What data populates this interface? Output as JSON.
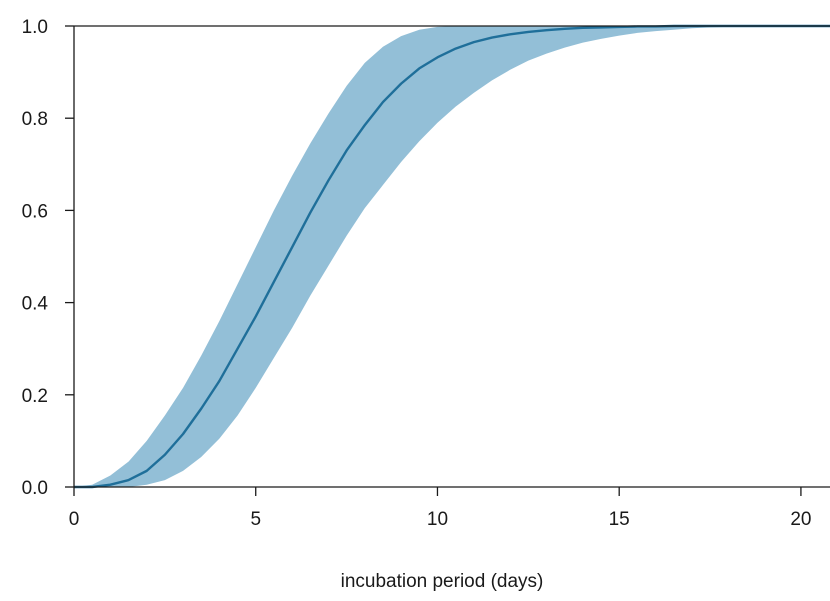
{
  "chart_data": {
    "type": "area",
    "title": "",
    "xlabel": "incubation period (days)",
    "ylabel": "",
    "xlim": [
      0,
      20.8
    ],
    "ylim": [
      0,
      1.0
    ],
    "x_ticks": [
      0,
      5,
      10,
      15,
      20
    ],
    "y_ticks": [
      0.0,
      0.2,
      0.4,
      0.6,
      0.8,
      1.0
    ],
    "x_tick_labels": [
      "0",
      "5",
      "10",
      "15",
      "20"
    ],
    "y_tick_labels": [
      "0.0",
      "0.2",
      "0.4",
      "0.6",
      "0.8",
      "1.0"
    ],
    "grid": false,
    "colors": {
      "line": "#1f6f9a",
      "band": "#93bfd7"
    },
    "x": [
      0,
      0.5,
      1,
      1.5,
      2,
      2.5,
      3,
      3.5,
      4,
      4.5,
      5,
      5.5,
      6,
      6.5,
      7,
      7.5,
      8,
      8.5,
      9,
      9.5,
      10,
      10.5,
      11,
      11.5,
      12,
      12.5,
      13,
      13.5,
      14,
      14.5,
      15,
      15.5,
      16,
      16.5,
      17,
      17.5,
      18,
      18.5,
      19,
      19.5,
      20,
      20.8
    ],
    "series": [
      {
        "role": "median",
        "values": [
          0,
          0,
          0.005,
          0.015,
          0.035,
          0.07,
          0.115,
          0.17,
          0.23,
          0.3,
          0.37,
          0.445,
          0.52,
          0.595,
          0.665,
          0.73,
          0.785,
          0.835,
          0.875,
          0.908,
          0.932,
          0.951,
          0.965,
          0.975,
          0.982,
          0.987,
          0.991,
          0.994,
          0.996,
          0.997,
          0.998,
          0.999,
          0.999,
          1,
          1,
          1,
          1,
          1,
          1,
          1,
          1,
          1
        ]
      },
      {
        "role": "upper",
        "values": [
          0,
          0.005,
          0.025,
          0.055,
          0.1,
          0.155,
          0.215,
          0.285,
          0.36,
          0.44,
          0.52,
          0.6,
          0.675,
          0.745,
          0.81,
          0.87,
          0.92,
          0.955,
          0.978,
          0.992,
          0.998,
          1,
          1,
          1,
          1,
          1,
          1,
          1,
          1,
          1,
          1,
          1,
          1,
          1,
          1,
          1,
          1,
          1,
          1,
          1,
          1,
          1
        ]
      },
      {
        "role": "lower",
        "values": [
          0,
          0,
          0,
          0,
          0.005,
          0.015,
          0.035,
          0.065,
          0.105,
          0.155,
          0.215,
          0.28,
          0.345,
          0.415,
          0.48,
          0.545,
          0.605,
          0.655,
          0.705,
          0.75,
          0.79,
          0.825,
          0.855,
          0.882,
          0.905,
          0.925,
          0.94,
          0.953,
          0.964,
          0.972,
          0.979,
          0.985,
          0.989,
          0.992,
          0.995,
          0.997,
          0.998,
          0.999,
          1,
          1,
          1,
          1
        ]
      }
    ]
  }
}
